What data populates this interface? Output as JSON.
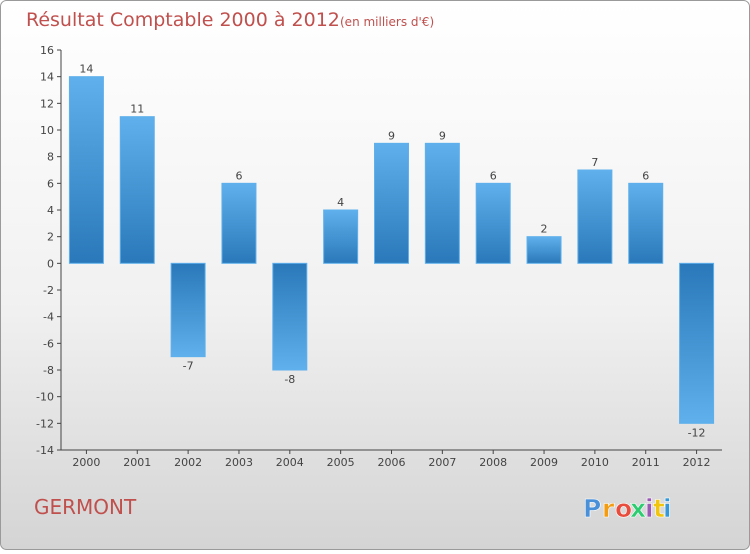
{
  "title": "Résultat Comptable 2000 à 2012",
  "subtitle": "(en milliers d'€)",
  "place": "GERMONT",
  "brand": {
    "letters": [
      "P",
      "r",
      "o",
      "x",
      "i",
      "t",
      "i"
    ],
    "colors": [
      "#4a90d9",
      "#f39c12",
      "#e74c3c",
      "#2ecc71",
      "#9b59b6",
      "#f1c40f",
      "#3498db"
    ]
  },
  "colors": {
    "title": "#c0504d",
    "place": "#c0504d",
    "bar_dark": "#2a78b9",
    "bar_light": "#5fb0ec",
    "axis": "#444444",
    "grid": "#d7d7d7",
    "text": "#444444"
  },
  "chart_data": {
    "type": "bar",
    "title": "Résultat Comptable 2000 à 2012",
    "subtitle": "(en milliers d'€)",
    "xlabel": "",
    "ylabel": "",
    "categories": [
      "2000",
      "2001",
      "2002",
      "2003",
      "2004",
      "2005",
      "2006",
      "2007",
      "2008",
      "2009",
      "2010",
      "2011",
      "2012"
    ],
    "values": [
      14,
      11,
      -7,
      6,
      -8,
      4,
      9,
      9,
      6,
      2,
      7,
      6,
      -12
    ],
    "ylim": [
      -14,
      16
    ],
    "yticks": [
      16,
      14,
      12,
      10,
      8,
      6,
      4,
      2,
      0,
      -2,
      -4,
      -6,
      -8,
      -10,
      -12,
      -14
    ],
    "grid": false,
    "legend": "none"
  }
}
